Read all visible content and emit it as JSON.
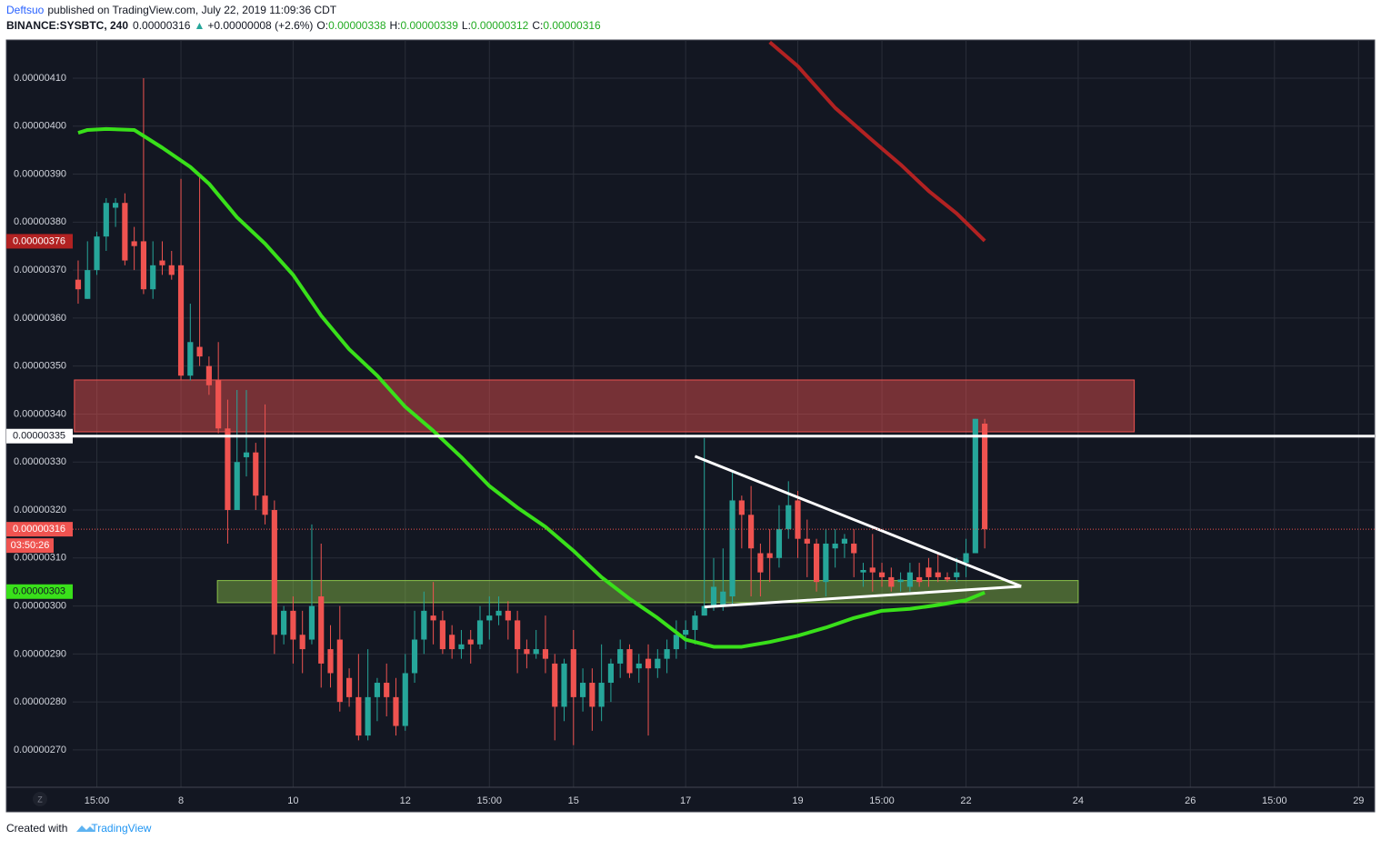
{
  "header": {
    "author": "Deftsuo",
    "published": "published on TradingView.com, July 22, 2019 11:09:36 CDT",
    "symbol": "BINANCE:SYSBTC, 240",
    "last": "0.00000316",
    "arrow": "▲",
    "change": "+0.00000008 (+2.6%)",
    "ohlc": [
      {
        "key": "O:",
        "value": "0.00000338"
      },
      {
        "key": "H:",
        "value": "0.00000339"
      },
      {
        "key": "L:",
        "value": "0.00000312"
      },
      {
        "key": "C:",
        "value": "0.00000316"
      }
    ]
  },
  "footer": {
    "created": "Created with",
    "brand": "TradingView",
    "button": "Z"
  },
  "chart_data": {
    "type": "candlestick",
    "up_color": "#26a69a",
    "down_color": "#ef5350",
    "grid": true,
    "xlim": [
      -0.58,
      138.72
    ],
    "xticks": [
      {
        "value": 2,
        "label": "15:00"
      },
      {
        "value": 11,
        "label": "8"
      },
      {
        "value": 23,
        "label": "10"
      },
      {
        "value": 35,
        "label": "12"
      },
      {
        "value": 44,
        "label": "15:00"
      },
      {
        "value": 53,
        "label": "15"
      },
      {
        "value": 65,
        "label": "17"
      },
      {
        "value": 77,
        "label": "19"
      },
      {
        "value": 86,
        "label": "15:00"
      },
      {
        "value": 95,
        "label": "22"
      },
      {
        "value": 107,
        "label": "24"
      },
      {
        "value": 119,
        "label": "26"
      },
      {
        "value": 128,
        "label": "15:00"
      },
      {
        "value": 137,
        "label": "29"
      }
    ],
    "ylim": [
      2.6222e-06,
      4.1795e-06
    ],
    "yticks": [
      {
        "value": 2.7e-06,
        "label": "0.00000270"
      },
      {
        "value": 2.8e-06,
        "label": "0.00000280"
      },
      {
        "value": 2.9e-06,
        "label": "0.00000290"
      },
      {
        "value": 3e-06,
        "label": "0.00000300"
      },
      {
        "value": 3.1e-06,
        "label": "0.00000310"
      },
      {
        "value": 3.2e-06,
        "label": "0.00000320"
      },
      {
        "value": 3.3e-06,
        "label": "0.00000330"
      },
      {
        "value": 3.4e-06,
        "label": "0.00000340"
      },
      {
        "value": 3.5e-06,
        "label": "0.00000350"
      },
      {
        "value": 3.6e-06,
        "label": "0.00000360"
      },
      {
        "value": 3.7e-06,
        "label": "0.00000370"
      },
      {
        "value": 3.8e-06,
        "label": "0.00000380"
      },
      {
        "value": 3.9e-06,
        "label": "0.00000390"
      },
      {
        "value": 4e-06,
        "label": "0.00000400"
      },
      {
        "value": 4.1e-06,
        "label": "0.00000410"
      }
    ],
    "open": [
      3.68e-06,
      3.64e-06,
      3.7e-06,
      3.77e-06,
      3.83e-06,
      3.84e-06,
      3.76e-06,
      3.76e-06,
      3.66e-06,
      3.72e-06,
      3.71e-06,
      3.71e-06,
      3.48e-06,
      3.54e-06,
      3.5e-06,
      3.47e-06,
      3.37e-06,
      3.2e-06,
      3.31e-06,
      3.32e-06,
      3.23e-06,
      3.2e-06,
      2.94e-06,
      2.99e-06,
      2.94e-06,
      2.93e-06,
      3.02e-06,
      2.91e-06,
      2.93e-06,
      2.85e-06,
      2.81e-06,
      2.73e-06,
      2.81e-06,
      2.84e-06,
      2.81e-06,
      2.75e-06,
      2.86e-06,
      2.93e-06,
      2.98e-06,
      2.97e-06,
      2.94e-06,
      2.91e-06,
      2.93e-06,
      2.92e-06,
      2.97e-06,
      2.98e-06,
      2.99e-06,
      2.97e-06,
      2.91e-06,
      2.9e-06,
      2.91e-06,
      2.88e-06,
      2.79e-06,
      2.91e-06,
      2.81e-06,
      2.84e-06,
      2.79e-06,
      2.84e-06,
      2.88e-06,
      2.91e-06,
      2.87e-06,
      2.89e-06,
      2.87e-06,
      2.89e-06,
      2.91e-06,
      2.94e-06,
      2.95e-06,
      2.98e-06,
      3e-06,
      3e-06,
      3.02e-06,
      3.22e-06,
      3.19e-06,
      3.11e-06,
      3.11e-06,
      3.1e-06,
      3.16e-06,
      3.22e-06,
      3.14e-06,
      3.13e-06,
      3.05e-06,
      3.12e-06,
      3.13e-06,
      3.13e-06,
      3.07e-06,
      3.08e-06,
      3.07e-06,
      3.06e-06,
      3.05e-06,
      3.04e-06,
      3.06e-06,
      3.08e-06,
      3.07e-06,
      3.06e-06,
      3.06e-06,
      3.09e-06,
      3.11e-06,
      3.38e-06
    ],
    "high": [
      3.72e-06,
      3.76e-06,
      3.78e-06,
      3.85e-06,
      3.85e-06,
      3.86e-06,
      3.79e-06,
      4.1e-06,
      3.76e-06,
      3.76e-06,
      3.74e-06,
      3.89e-06,
      3.63e-06,
      3.9e-06,
      3.52e-06,
      3.55e-06,
      3.43e-06,
      3.45e-06,
      3.45e-06,
      3.34e-06,
      3.42e-06,
      3.22e-06,
      3e-06,
      3.02e-06,
      2.99e-06,
      3.17e-06,
      3.13e-06,
      2.96e-06,
      3e-06,
      2.87e-06,
      2.9e-06,
      2.91e-06,
      2.85e-06,
      2.88e-06,
      2.85e-06,
      2.9e-06,
      2.99e-06,
      3.03e-06,
      3.05e-06,
      2.99e-06,
      2.96e-06,
      2.95e-06,
      2.95e-06,
      3e-06,
      3.02e-06,
      3.02e-06,
      3.01e-06,
      2.99e-06,
      2.93e-06,
      2.95e-06,
      2.98e-06,
      2.9e-06,
      2.89e-06,
      2.95e-06,
      2.87e-06,
      2.87e-06,
      2.92e-06,
      2.89e-06,
      2.93e-06,
      2.92e-06,
      2.9e-06,
      2.92e-06,
      2.91e-06,
      2.93e-06,
      2.97e-06,
      2.97e-06,
      2.99e-06,
      3.35e-06,
      3.1e-06,
      3.12e-06,
      3.28e-06,
      3.23e-06,
      3.25e-06,
      3.13e-06,
      3.16e-06,
      3.21e-06,
      3.26e-06,
      3.24e-06,
      3.18e-06,
      3.14e-06,
      3.16e-06,
      3.16e-06,
      3.15e-06,
      3.16e-06,
      3.09e-06,
      3.15e-06,
      3.09e-06,
      3.08e-06,
      3.07e-06,
      3.09e-06,
      3.09e-06,
      3.1e-06,
      3.11e-06,
      3.07e-06,
      3.1e-06,
      3.14e-06,
      3.39e-06,
      3.39e-06
    ],
    "low": [
      3.63e-06,
      3.64e-06,
      3.69e-06,
      3.74e-06,
      3.79e-06,
      3.71e-06,
      3.7e-06,
      3.65e-06,
      3.64e-06,
      3.69e-06,
      3.68e-06,
      3.47e-06,
      3.47e-06,
      3.5e-06,
      3.44e-06,
      3.36e-06,
      3.13e-06,
      3.2e-06,
      3.27e-06,
      3.2e-06,
      3.17e-06,
      2.9e-06,
      2.92e-06,
      2.88e-06,
      2.86e-06,
      2.92e-06,
      2.83e-06,
      2.83e-06,
      2.78e-06,
      2.79e-06,
      2.72e-06,
      2.72e-06,
      2.76e-06,
      2.77e-06,
      2.73e-06,
      2.74e-06,
      2.84e-06,
      2.9e-06,
      2.92e-06,
      2.9e-06,
      2.89e-06,
      2.89e-06,
      2.88e-06,
      2.91e-06,
      2.93e-06,
      2.96e-06,
      2.93e-06,
      2.86e-06,
      2.87e-06,
      2.89e-06,
      2.86e-06,
      2.72e-06,
      2.76e-06,
      2.71e-06,
      2.78e-06,
      2.74e-06,
      2.76e-06,
      2.8e-06,
      2.85e-06,
      2.85e-06,
      2.84e-06,
      2.73e-06,
      2.85e-06,
      2.86e-06,
      2.89e-06,
      2.91e-06,
      2.92e-06,
      2.98e-06,
      2.99e-06,
      2.99e-06,
      3e-06,
      3.12e-06,
      3.02e-06,
      3.02e-06,
      3.05e-06,
      3.08e-06,
      3.14e-06,
      3.1e-06,
      3.06e-06,
      3.03e-06,
      3.02e-06,
      3.08e-06,
      3.1e-06,
      3.06e-06,
      3.04e-06,
      3.03e-06,
      3.04e-06,
      3.03e-06,
      3.03e-06,
      3.03e-06,
      3.04e-06,
      3.04e-06,
      3.05e-06,
      3.05e-06,
      3.05e-06,
      3.06e-06,
      3.11e-06,
      3.12e-06
    ],
    "close": [
      3.66e-06,
      3.7e-06,
      3.77e-06,
      3.84e-06,
      3.84e-06,
      3.72e-06,
      3.75e-06,
      3.66e-06,
      3.71e-06,
      3.71e-06,
      3.69e-06,
      3.48e-06,
      3.55e-06,
      3.52e-06,
      3.46e-06,
      3.37e-06,
      3.2e-06,
      3.3e-06,
      3.32e-06,
      3.23e-06,
      3.19e-06,
      2.94e-06,
      2.99e-06,
      2.93e-06,
      2.91e-06,
      3e-06,
      2.88e-06,
      2.86e-06,
      2.8e-06,
      2.81e-06,
      2.73e-06,
      2.81e-06,
      2.84e-06,
      2.81e-06,
      2.75e-06,
      2.86e-06,
      2.93e-06,
      2.99e-06,
      2.97e-06,
      2.91e-06,
      2.91e-06,
      2.92e-06,
      2.92e-06,
      2.97e-06,
      2.98e-06,
      2.99e-06,
      2.97e-06,
      2.91e-06,
      2.9e-06,
      2.91e-06,
      2.89e-06,
      2.79e-06,
      2.88e-06,
      2.81e-06,
      2.84e-06,
      2.79e-06,
      2.84e-06,
      2.88e-06,
      2.91e-06,
      2.86e-06,
      2.88e-06,
      2.87e-06,
      2.89e-06,
      2.91e-06,
      2.94e-06,
      2.95e-06,
      2.98e-06,
      3e-06,
      3.04e-06,
      3.03e-06,
      3.22e-06,
      3.19e-06,
      3.12e-06,
      3.07e-06,
      3.1e-06,
      3.16e-06,
      3.21e-06,
      3.14e-06,
      3.13e-06,
      3.05e-06,
      3.13e-06,
      3.13e-06,
      3.14e-06,
      3.11e-06,
      3.075e-06,
      3.07e-06,
      3.06e-06,
      3.04e-06,
      3.055e-06,
      3.07e-06,
      3.05e-06,
      3.06e-06,
      3.06e-06,
      3.055e-06,
      3.07e-06,
      3.11e-06,
      3.39e-06,
      3.16e-06
    ],
    "series": [
      {
        "color": "#39e01a",
        "x": [
          0,
          1,
          3,
          6,
          9,
          12,
          14,
          17,
          20,
          23,
          26,
          29,
          32,
          35,
          38,
          41,
          44,
          47,
          50,
          53,
          56,
          59,
          62,
          65,
          68,
          71,
          74,
          77,
          80,
          83,
          86,
          89,
          92,
          95,
          97
        ],
        "values": [
          3.986e-06,
          3.992e-06,
          3.994e-06,
          3.992e-06,
          3.955e-06,
          3.915e-06,
          3.88e-06,
          3.81e-06,
          3.755e-06,
          3.69e-06,
          3.605e-06,
          3.535e-06,
          3.48e-06,
          3.415e-06,
          3.365e-06,
          3.31e-06,
          3.25e-06,
          3.205e-06,
          3.165e-06,
          3.115e-06,
          3.06e-06,
          3.015e-06,
          2.975e-06,
          2.93e-06,
          2.915e-06,
          2.915e-06,
          2.925e-06,
          2.938e-06,
          2.955e-06,
          2.975e-06,
          2.99e-06,
          2.994e-06,
          3.002e-06,
          3.012e-06,
          3.028e-06
        ]
      },
      {
        "color": "#b22222",
        "x": [
          74,
          77,
          81,
          85,
          88,
          91,
          94,
          97
        ],
        "values": [
          4.175e-06,
          4.125e-06,
          4.038e-06,
          3.97e-06,
          3.92e-06,
          3.865e-06,
          3.818e-06,
          3.761e-06
        ]
      }
    ],
    "drawings": [
      {
        "kind": "zone",
        "x": [
          -0.4,
          113.0
        ],
        "y": [
          3.363e-06,
          3.471e-06
        ],
        "color": "#ef5350"
      },
      {
        "kind": "zone",
        "x": [
          14.9,
          107.0
        ],
        "y": [
          3.007e-06,
          3.053e-06
        ],
        "color": "#8bc34a"
      },
      {
        "kind": "hline",
        "y": 3.354e-06,
        "color": "#ffffff",
        "label": "0.00000335"
      },
      {
        "kind": "segment",
        "x": [
          66,
          100.9
        ],
        "y": [
          3.312e-06,
          3.041e-06
        ],
        "color": "#ffffff"
      },
      {
        "kind": "segment",
        "x": [
          67,
          100.9
        ],
        "y": [
          2.998e-06,
          3.041e-06
        ],
        "color": "#ffffff"
      }
    ],
    "price_tags": [
      {
        "value": 3.76e-06,
        "label": "0.00000376",
        "color": "#b22222"
      },
      {
        "value": 3.16e-06,
        "label": "0.00000316",
        "color": "#ef5350",
        "dotted": true,
        "countdown": "03:50:26"
      },
      {
        "value": 3.03e-06,
        "label": "0.00000303",
        "color": "#39e01a"
      }
    ]
  }
}
